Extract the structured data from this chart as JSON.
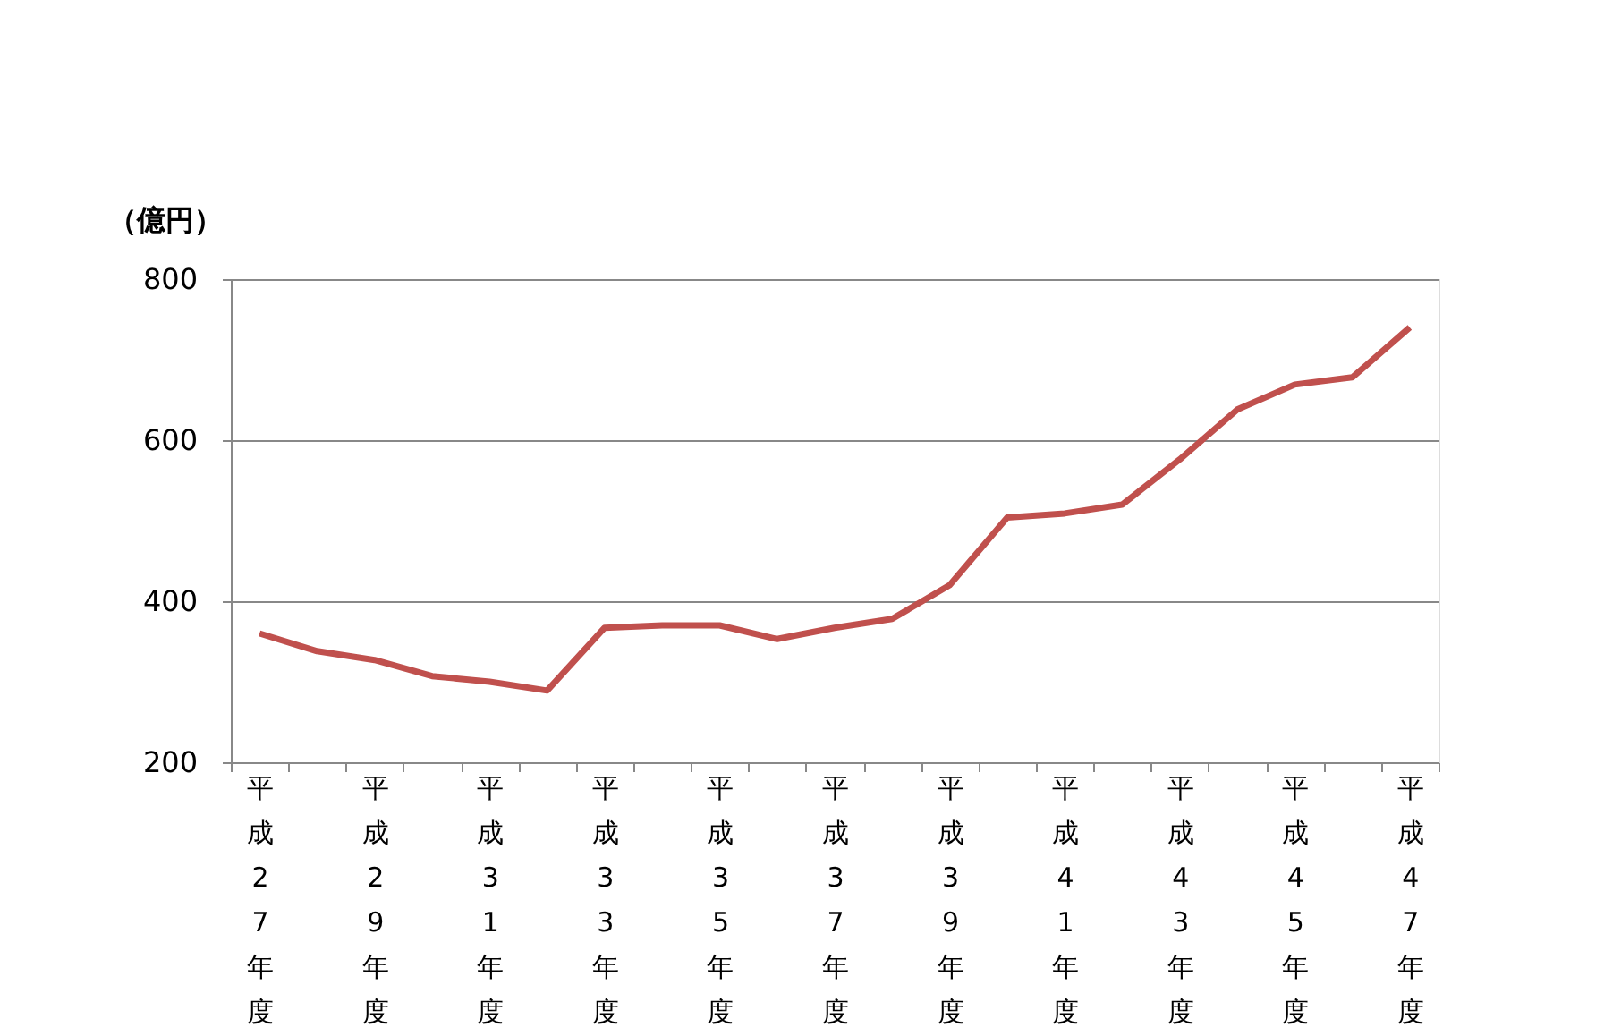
{
  "chart_data": {
    "type": "line",
    "ylabel": "（億円）",
    "categories": [
      "平成27年度",
      null,
      "平成29年度",
      null,
      "平成31年度",
      null,
      "平成33年度",
      null,
      "平成35年度",
      null,
      "平成37年度",
      null,
      "平成39年度",
      null,
      "平成41年度",
      null,
      "平成43年度",
      null,
      "平成45年度",
      null,
      "平成47年度"
    ],
    "series": [
      {
        "color": "#c0504d",
        "values": [
          360,
          338,
          327,
          307,
          300,
          289,
          367,
          370,
          370,
          353,
          367,
          378,
          420,
          504,
          509,
          520,
          576,
          638,
          669,
          678,
          740
        ]
      }
    ],
    "ylim": [
      200,
      800
    ],
    "yticks": [
      200,
      400,
      600,
      800
    ],
    "grid": "y",
    "legend": false,
    "marker": "none",
    "line_style": "solid"
  }
}
